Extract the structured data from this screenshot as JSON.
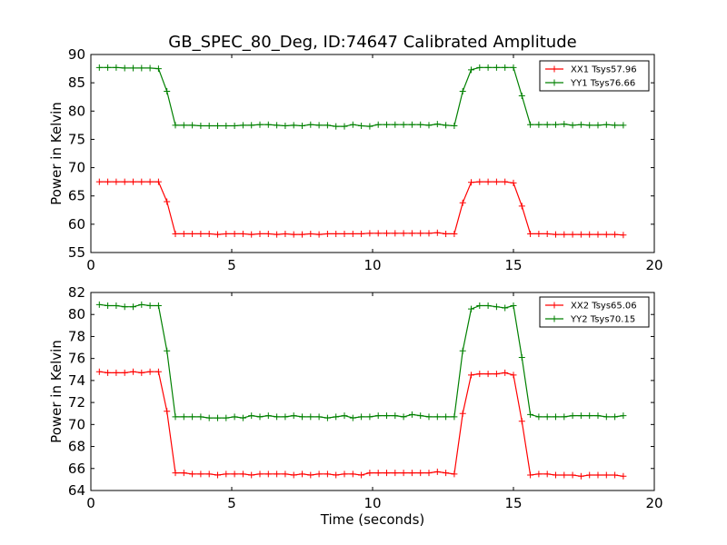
{
  "chart_data": [
    {
      "type": "line",
      "title": "GB_SPEC_80_Deg, ID:74647 Calibrated Amplitude",
      "xlabel": "",
      "ylabel": "Power in Kelvin",
      "xlim": [
        0,
        20
      ],
      "ylim": [
        55,
        90
      ],
      "xticks": [
        "0",
        "5",
        "10",
        "15",
        "20"
      ],
      "yticks": [
        "55",
        "60",
        "65",
        "70",
        "75",
        "80",
        "85",
        "90"
      ],
      "grid": false,
      "legend": "top-right",
      "series": [
        {
          "name": "XX1 Tsys57.96",
          "color": "#ff0000",
          "x": [
            0.3,
            0.6,
            0.9,
            1.2,
            1.5,
            1.8,
            2.1,
            2.4,
            2.7,
            3.0,
            3.3,
            3.6,
            3.9,
            4.2,
            4.5,
            4.8,
            5.1,
            5.4,
            5.7,
            6.0,
            6.3,
            6.6,
            6.9,
            7.2,
            7.5,
            7.8,
            8.1,
            8.4,
            8.7,
            9.0,
            9.3,
            9.6,
            9.9,
            10.2,
            10.5,
            10.8,
            11.1,
            11.4,
            11.7,
            12.0,
            12.3,
            12.6,
            12.9,
            13.2,
            13.5,
            13.8,
            14.1,
            14.4,
            14.7,
            15.0,
            15.3,
            15.6,
            15.9,
            16.2,
            16.5,
            16.8,
            17.1,
            17.4,
            17.7,
            18.0,
            18.3,
            18.6,
            18.9
          ],
          "y": [
            67.5,
            67.5,
            67.5,
            67.5,
            67.5,
            67.5,
            67.5,
            67.5,
            64.0,
            58.3,
            58.3,
            58.3,
            58.3,
            58.3,
            58.2,
            58.3,
            58.3,
            58.3,
            58.2,
            58.3,
            58.3,
            58.2,
            58.3,
            58.2,
            58.2,
            58.3,
            58.2,
            58.3,
            58.3,
            58.3,
            58.3,
            58.3,
            58.4,
            58.4,
            58.4,
            58.4,
            58.4,
            58.4,
            58.4,
            58.4,
            58.5,
            58.3,
            58.3,
            63.8,
            67.4,
            67.5,
            67.5,
            67.5,
            67.5,
            67.3,
            63.2,
            58.3,
            58.3,
            58.3,
            58.2,
            58.2,
            58.2,
            58.2,
            58.2,
            58.2,
            58.2,
            58.2,
            58.1
          ]
        },
        {
          "name": "YY1 Tsys76.66",
          "color": "#008000",
          "x": [
            0.3,
            0.6,
            0.9,
            1.2,
            1.5,
            1.8,
            2.1,
            2.4,
            2.7,
            3.0,
            3.3,
            3.6,
            3.9,
            4.2,
            4.5,
            4.8,
            5.1,
            5.4,
            5.7,
            6.0,
            6.3,
            6.6,
            6.9,
            7.2,
            7.5,
            7.8,
            8.1,
            8.4,
            8.7,
            9.0,
            9.3,
            9.6,
            9.9,
            10.2,
            10.5,
            10.8,
            11.1,
            11.4,
            11.7,
            12.0,
            12.3,
            12.6,
            12.9,
            13.2,
            13.5,
            13.8,
            14.1,
            14.4,
            14.7,
            15.0,
            15.3,
            15.6,
            15.9,
            16.2,
            16.5,
            16.8,
            17.1,
            17.4,
            17.7,
            18.0,
            18.3,
            18.6,
            18.9
          ],
          "y": [
            87.7,
            87.7,
            87.7,
            87.6,
            87.6,
            87.6,
            87.6,
            87.5,
            83.5,
            77.5,
            77.5,
            77.5,
            77.4,
            77.4,
            77.4,
            77.4,
            77.4,
            77.5,
            77.5,
            77.6,
            77.6,
            77.5,
            77.4,
            77.5,
            77.4,
            77.6,
            77.5,
            77.5,
            77.3,
            77.3,
            77.6,
            77.4,
            77.3,
            77.6,
            77.6,
            77.6,
            77.6,
            77.6,
            77.6,
            77.5,
            77.7,
            77.5,
            77.4,
            83.5,
            87.3,
            87.7,
            87.7,
            87.7,
            87.7,
            87.7,
            82.7,
            77.6,
            77.6,
            77.6,
            77.6,
            77.7,
            77.5,
            77.6,
            77.5,
            77.5,
            77.6,
            77.5,
            77.5
          ]
        }
      ]
    },
    {
      "type": "line",
      "title": "",
      "xlabel": "Time (seconds)",
      "ylabel": "Power in Kelvin",
      "xlim": [
        0,
        20
      ],
      "ylim": [
        64,
        82
      ],
      "xticks": [
        "0",
        "5",
        "10",
        "15",
        "20"
      ],
      "yticks": [
        "64",
        "66",
        "68",
        "70",
        "72",
        "74",
        "76",
        "78",
        "80",
        "82"
      ],
      "grid": false,
      "legend": "top-right",
      "series": [
        {
          "name": "XX2 Tsys65.06",
          "color": "#ff0000",
          "x": [
            0.3,
            0.6,
            0.9,
            1.2,
            1.5,
            1.8,
            2.1,
            2.4,
            2.7,
            3.0,
            3.3,
            3.6,
            3.9,
            4.2,
            4.5,
            4.8,
            5.1,
            5.4,
            5.7,
            6.0,
            6.3,
            6.6,
            6.9,
            7.2,
            7.5,
            7.8,
            8.1,
            8.4,
            8.7,
            9.0,
            9.3,
            9.6,
            9.9,
            10.2,
            10.5,
            10.8,
            11.1,
            11.4,
            11.7,
            12.0,
            12.3,
            12.6,
            12.9,
            13.2,
            13.5,
            13.8,
            14.1,
            14.4,
            14.7,
            15.0,
            15.3,
            15.6,
            15.9,
            16.2,
            16.5,
            16.8,
            17.1,
            17.4,
            17.7,
            18.0,
            18.3,
            18.6,
            18.9
          ],
          "y": [
            74.8,
            74.7,
            74.7,
            74.7,
            74.8,
            74.7,
            74.8,
            74.8,
            71.2,
            65.6,
            65.6,
            65.5,
            65.5,
            65.5,
            65.4,
            65.5,
            65.5,
            65.5,
            65.4,
            65.5,
            65.5,
            65.5,
            65.5,
            65.4,
            65.5,
            65.4,
            65.5,
            65.5,
            65.4,
            65.5,
            65.5,
            65.4,
            65.6,
            65.6,
            65.6,
            65.6,
            65.6,
            65.6,
            65.6,
            65.6,
            65.7,
            65.6,
            65.5,
            71.0,
            74.5,
            74.6,
            74.6,
            74.6,
            74.7,
            74.5,
            70.3,
            65.4,
            65.5,
            65.5,
            65.4,
            65.4,
            65.4,
            65.3,
            65.4,
            65.4,
            65.4,
            65.4,
            65.3
          ]
        },
        {
          "name": "YY2 Tsys70.15",
          "color": "#008000",
          "x": [
            0.3,
            0.6,
            0.9,
            1.2,
            1.5,
            1.8,
            2.1,
            2.4,
            2.7,
            3.0,
            3.3,
            3.6,
            3.9,
            4.2,
            4.5,
            4.8,
            5.1,
            5.4,
            5.7,
            6.0,
            6.3,
            6.6,
            6.9,
            7.2,
            7.5,
            7.8,
            8.1,
            8.4,
            8.7,
            9.0,
            9.3,
            9.6,
            9.9,
            10.2,
            10.5,
            10.8,
            11.1,
            11.4,
            11.7,
            12.0,
            12.3,
            12.6,
            12.9,
            13.2,
            13.5,
            13.8,
            14.1,
            14.4,
            14.7,
            15.0,
            15.3,
            15.6,
            15.9,
            16.2,
            16.5,
            16.8,
            17.1,
            17.4,
            17.7,
            18.0,
            18.3,
            18.6,
            18.9
          ],
          "y": [
            80.9,
            80.8,
            80.8,
            80.7,
            80.7,
            80.9,
            80.8,
            80.8,
            76.7,
            70.7,
            70.7,
            70.7,
            70.7,
            70.6,
            70.6,
            70.6,
            70.7,
            70.6,
            70.8,
            70.7,
            70.8,
            70.7,
            70.7,
            70.8,
            70.7,
            70.7,
            70.7,
            70.6,
            70.7,
            70.8,
            70.6,
            70.7,
            70.7,
            70.8,
            70.8,
            70.8,
            70.7,
            70.9,
            70.8,
            70.7,
            70.7,
            70.7,
            70.7,
            76.7,
            80.5,
            80.8,
            80.8,
            80.7,
            80.6,
            80.8,
            76.1,
            70.9,
            70.7,
            70.7,
            70.7,
            70.7,
            70.8,
            70.8,
            70.8,
            70.8,
            70.7,
            70.7,
            70.8
          ]
        }
      ]
    }
  ]
}
